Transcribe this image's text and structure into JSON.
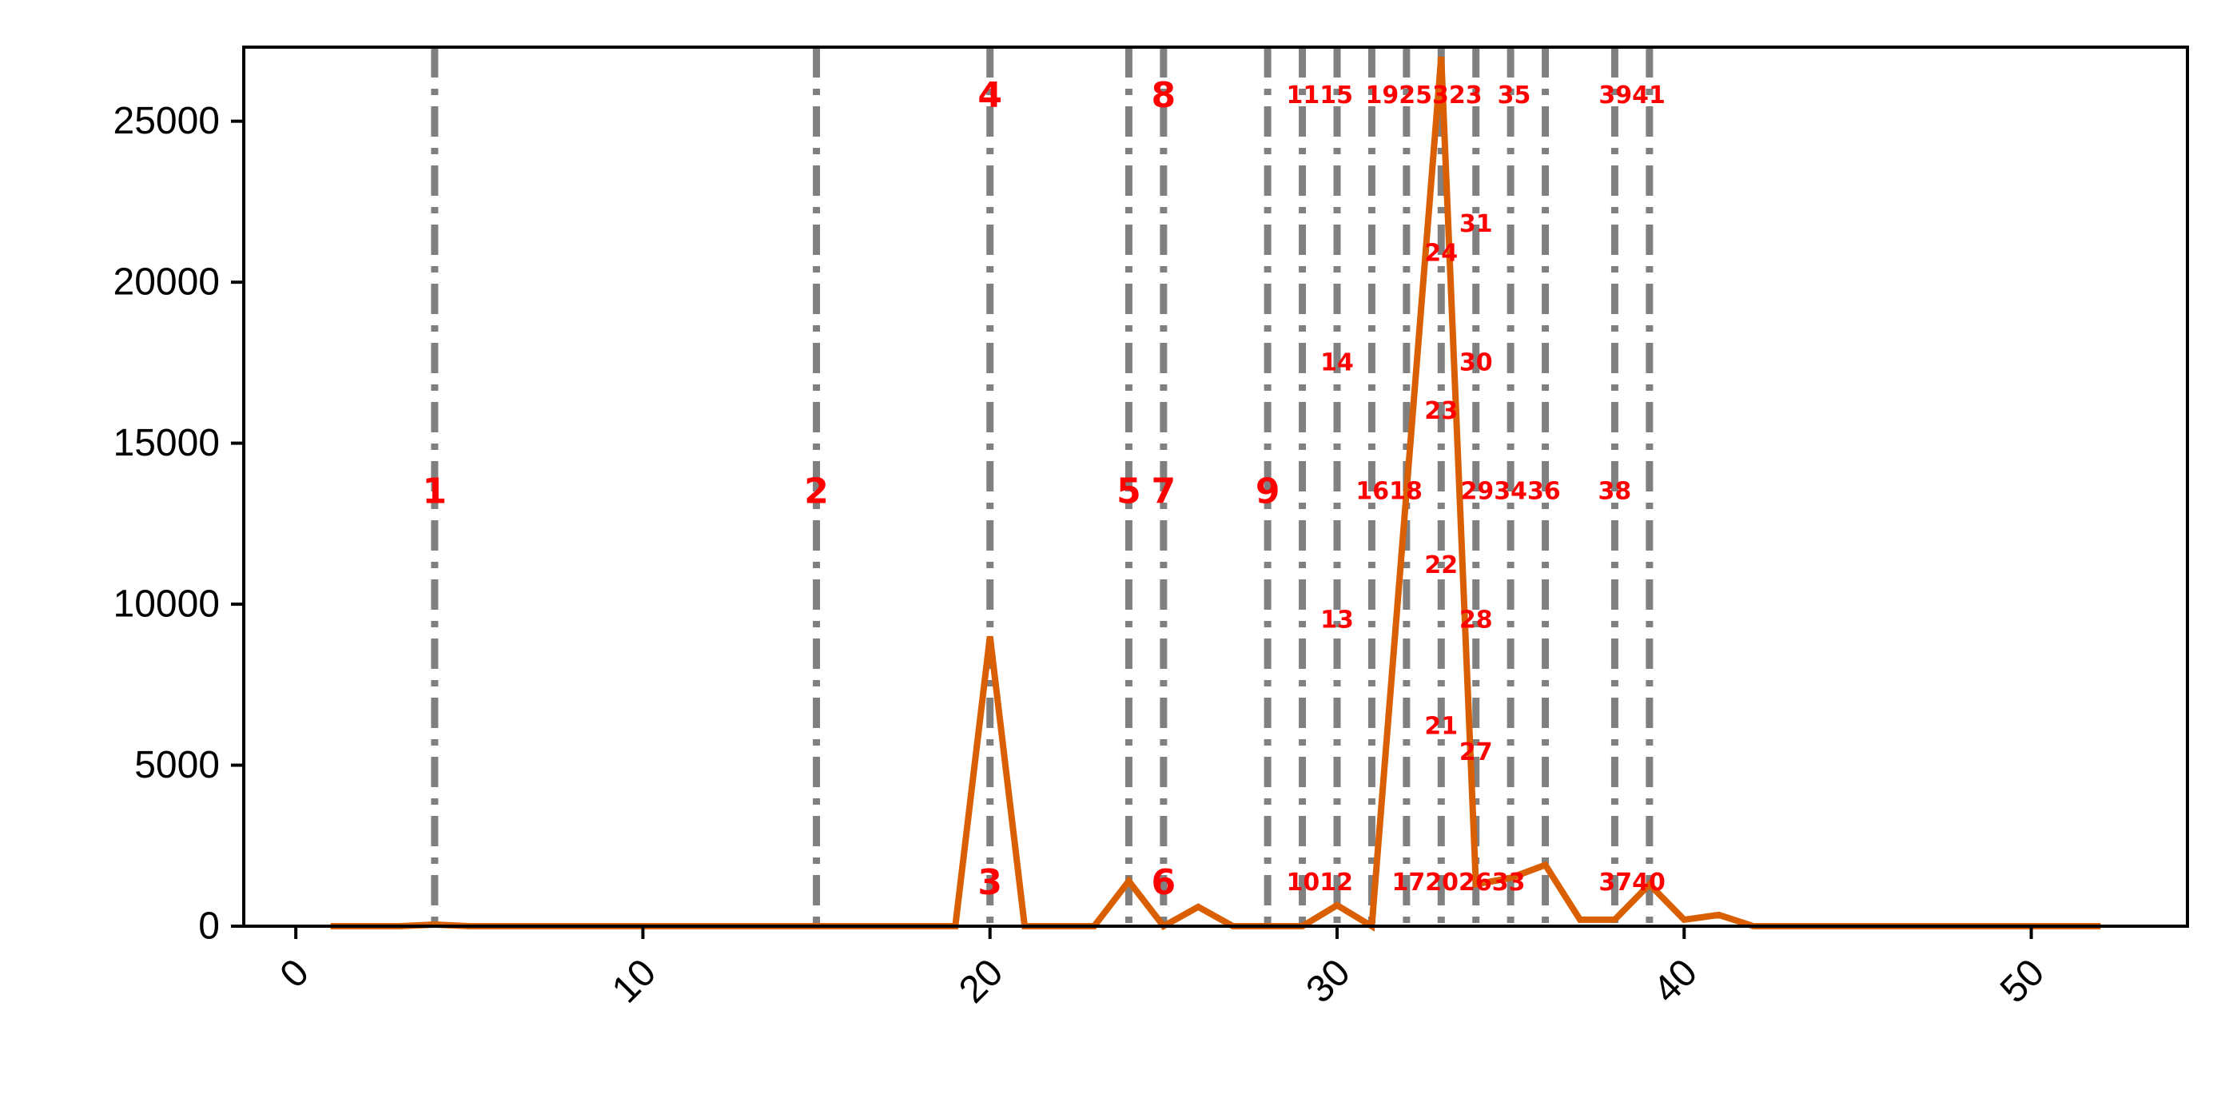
{
  "chart_data": {
    "type": "line",
    "title": "",
    "xlabel": "",
    "ylabel": "",
    "xlim": [
      -1.5,
      54.5
    ],
    "ylim": [
      0,
      27300
    ],
    "x_ticks": [
      0,
      10,
      20,
      30,
      40,
      50
    ],
    "y_ticks": [
      0,
      5000,
      10000,
      15000,
      20000,
      25000
    ],
    "grid": false,
    "legend": "none",
    "colors": {
      "line": "#d95f02",
      "vline": "#808080",
      "annotation": "#ff0000",
      "axis": "#000000"
    },
    "series": [
      {
        "x": [
          1,
          2,
          3,
          4,
          5,
          6,
          7,
          8,
          9,
          10,
          11,
          12,
          13,
          14,
          15,
          16,
          17,
          18,
          19,
          20,
          21,
          22,
          23,
          24,
          25,
          26,
          27,
          28,
          29,
          30,
          31,
          32,
          33,
          34,
          35,
          36,
          37,
          38,
          39,
          40,
          41,
          42,
          43,
          44,
          45,
          46,
          47,
          48,
          49,
          50,
          51,
          52
        ],
        "values": [
          0,
          0,
          0,
          50,
          0,
          0,
          0,
          0,
          0,
          0,
          0,
          0,
          0,
          0,
          0,
          0,
          0,
          0,
          0,
          9000,
          0,
          0,
          0,
          1400,
          0,
          600,
          0,
          0,
          0,
          650,
          0,
          13500,
          27000,
          1300,
          1500,
          1900,
          200,
          200,
          1300,
          200,
          350,
          0,
          0,
          0,
          0,
          0,
          0,
          0,
          0,
          0,
          0,
          0
        ]
      }
    ],
    "vlines": [
      4,
      15,
      20,
      24,
      25,
      28,
      29,
      30,
      31,
      32,
      33,
      34,
      35,
      36,
      38,
      39
    ],
    "annotations": [
      {
        "text": "1",
        "x": 4,
        "y": 13500,
        "size": "large"
      },
      {
        "text": "2",
        "x": 15,
        "y": 13500,
        "size": "large"
      },
      {
        "text": "3",
        "x": 20,
        "y": 1350,
        "size": "large"
      },
      {
        "text": "4",
        "x": 20,
        "y": 25800,
        "size": "large"
      },
      {
        "text": "5",
        "x": 24,
        "y": 13500,
        "size": "large"
      },
      {
        "text": "6",
        "x": 25,
        "y": 1350,
        "size": "large"
      },
      {
        "text": "7",
        "x": 25,
        "y": 13500,
        "size": "large"
      },
      {
        "text": "8",
        "x": 25,
        "y": 25800,
        "size": "large"
      },
      {
        "text": "9",
        "x": 28,
        "y": 13500,
        "size": "large"
      },
      {
        "text": "1012",
        "x": 29.5,
        "y": 1350,
        "size": "small"
      },
      {
        "text": "1115",
        "x": 29.5,
        "y": 25800,
        "size": "small"
      },
      {
        "text": "13",
        "x": 30,
        "y": 9500,
        "size": "small"
      },
      {
        "text": "14",
        "x": 30,
        "y": 17500,
        "size": "small"
      },
      {
        "text": "1618",
        "x": 31.5,
        "y": 13500,
        "size": "small"
      },
      {
        "text": "17202633",
        "x": 33.5,
        "y": 1350,
        "size": "small"
      },
      {
        "text": "1925323",
        "x": 32.5,
        "y": 25800,
        "size": "small"
      },
      {
        "text": "35",
        "x": 35.1,
        "y": 25800,
        "size": "small"
      },
      {
        "text": "21",
        "x": 33,
        "y": 6200,
        "size": "small"
      },
      {
        "text": "22",
        "x": 33,
        "y": 11200,
        "size": "small"
      },
      {
        "text": "23",
        "x": 33,
        "y": 16000,
        "size": "small"
      },
      {
        "text": "24",
        "x": 33,
        "y": 20900,
        "size": "small"
      },
      {
        "text": "27",
        "x": 34,
        "y": 5400,
        "size": "small"
      },
      {
        "text": "28",
        "x": 34,
        "y": 9500,
        "size": "small"
      },
      {
        "text": "30",
        "x": 34,
        "y": 17500,
        "size": "small"
      },
      {
        "text": "31",
        "x": 34,
        "y": 21800,
        "size": "small"
      },
      {
        "text": "293436",
        "x": 35,
        "y": 13500,
        "size": "small"
      },
      {
        "text": "38",
        "x": 38,
        "y": 13500,
        "size": "small"
      },
      {
        "text": "3740",
        "x": 38.5,
        "y": 1350,
        "size": "small"
      },
      {
        "text": "3941",
        "x": 38.5,
        "y": 25800,
        "size": "small"
      }
    ]
  }
}
